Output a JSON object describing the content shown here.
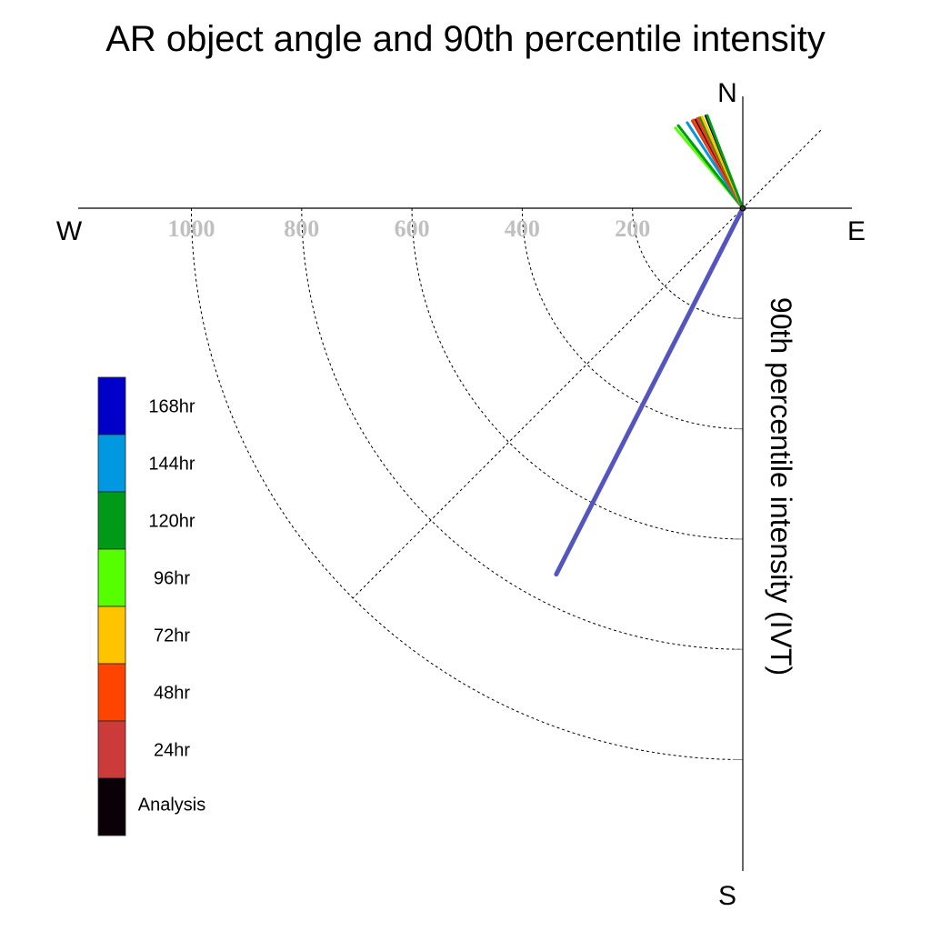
{
  "chart_data": {
    "type": "polar-line",
    "title": "AR object angle and 90th percentile intensity",
    "radial_label": "90th percentile intensity (IVT)",
    "compass": {
      "north": "N",
      "south": "S",
      "east": "E",
      "west": "W"
    },
    "radial_ticks": [
      200,
      400,
      600,
      800,
      1000
    ],
    "legend": [
      {
        "label": "168hr",
        "color": "#0000c8"
      },
      {
        "label": "144hr",
        "color": "#0098e0"
      },
      {
        "label": "120hr",
        "color": "#009a18"
      },
      {
        "label": "96hr",
        "color": "#55ff00"
      },
      {
        "label": "72hr",
        "color": "#ffc400"
      },
      {
        "label": "48hr",
        "color": "#ff4400"
      },
      {
        "label": "24hr",
        "color": "#cc3a3a"
      },
      {
        "label": "Analysis",
        "color": "#0b0008"
      }
    ],
    "series": [
      {
        "color": "#5555c0",
        "angle_deg": 207,
        "intensity": 745,
        "width": 5
      },
      {
        "color": "#55ff00",
        "angle_deg": 320,
        "intensity": 190,
        "width": 3
      },
      {
        "color": "#009a18",
        "angle_deg": 322,
        "intensity": 190,
        "width": 3
      },
      {
        "color": "#0098e0",
        "angle_deg": 327,
        "intensity": 185,
        "width": 3
      },
      {
        "color": "#cc3a3a",
        "angle_deg": 330,
        "intensity": 183,
        "width": 3
      },
      {
        "color": "#ff4400",
        "angle_deg": 331,
        "intensity": 183,
        "width": 3
      },
      {
        "color": "#0b0008",
        "angle_deg": 332,
        "intensity": 182,
        "width": 2
      },
      {
        "color": "#cc3a3a",
        "angle_deg": 333,
        "intensity": 182,
        "width": 3
      },
      {
        "color": "#ff4400",
        "angle_deg": 334,
        "intensity": 182,
        "width": 3
      },
      {
        "color": "#009a18",
        "angle_deg": 335,
        "intensity": 181,
        "width": 3
      },
      {
        "color": "#ffc400",
        "angle_deg": 336,
        "intensity": 181,
        "width": 3
      },
      {
        "color": "#0b0008",
        "angle_deg": 338,
        "intensity": 181,
        "width": 2
      },
      {
        "color": "#009a18",
        "angle_deg": 339,
        "intensity": 180,
        "width": 3
      }
    ]
  }
}
